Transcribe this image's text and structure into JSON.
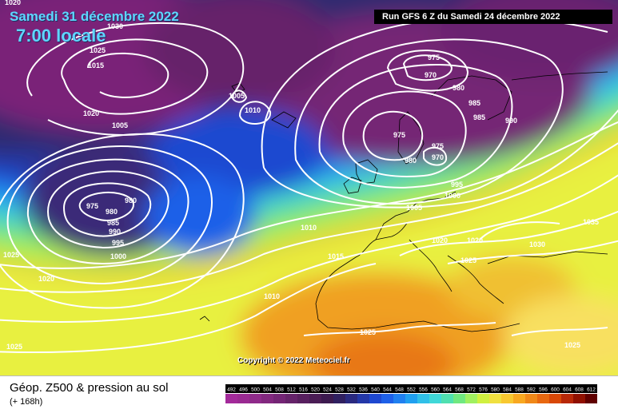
{
  "header": {
    "date": "Samedi 31 décembre 2022",
    "hour": "7:00 locale",
    "run": "Run GFS 6 Z du Samedi 24 décembre 2022"
  },
  "copyright": "Copyright © 2022 Meteociel.fr",
  "footer": {
    "title": "Géop. Z500 & pression au sol",
    "subtitle": "(+ 168h)"
  },
  "legend": {
    "scale": [
      "492",
      "496",
      "500",
      "504",
      "508",
      "512",
      "516",
      "520",
      "524",
      "528",
      "532",
      "536",
      "540",
      "544",
      "548",
      "552",
      "556",
      "560",
      "564",
      "568",
      "572",
      "576",
      "580",
      "584",
      "588",
      "592",
      "596",
      "600",
      "604",
      "608",
      "612"
    ],
    "colors": [
      "#a32a9a",
      "#9a2a92",
      "#8f2a8a",
      "#82287f",
      "#742575",
      "#66236a",
      "#58205f",
      "#4a1d55",
      "#3c1a4f",
      "#302060",
      "#2a2a80",
      "#2438a8",
      "#1e48d0",
      "#1e60e8",
      "#2080f0",
      "#20a0f0",
      "#30c0e8",
      "#40d8d8",
      "#50e0b0",
      "#70e880",
      "#a0f060",
      "#d0f040",
      "#f0e040",
      "#f8c830",
      "#f8a820",
      "#f08818",
      "#e86810",
      "#d84808",
      "#b82808",
      "#901000",
      "#600000"
    ]
  },
  "isobars": {
    "labels": [
      "1020",
      "1030",
      "1025",
      "1015",
      "1020",
      "1005",
      "1005",
      "1010",
      "975",
      "970",
      "980",
      "985",
      "985",
      "990",
      "975",
      "975",
      "980",
      "970",
      "995",
      "1000",
      "1005",
      "975",
      "980",
      "980",
      "985",
      "990",
      "995",
      "1000",
      "1025",
      "1020",
      "1010",
      "1015",
      "1020",
      "1020",
      "1025",
      "1030",
      "1035",
      "1010",
      "1025",
      "1025"
    ]
  },
  "colors": {
    "isobar": "#ffffff",
    "coast": "#000000"
  }
}
